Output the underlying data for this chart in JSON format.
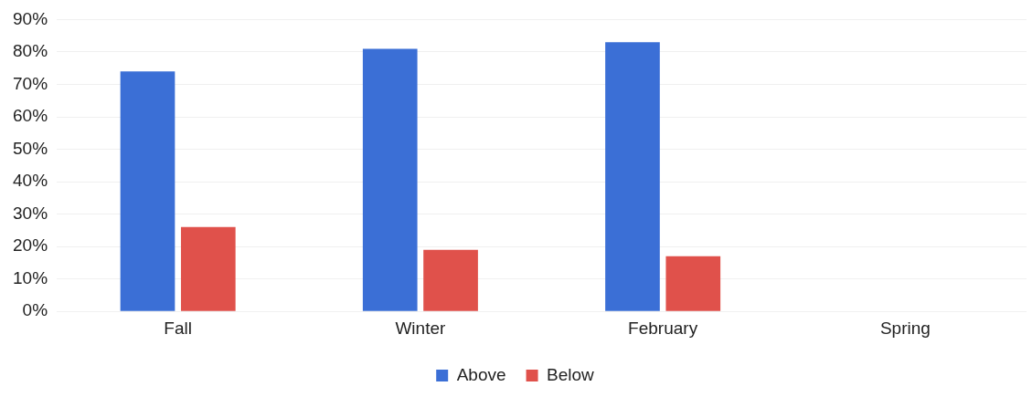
{
  "chart_data": {
    "type": "bar",
    "categories": [
      "Fall",
      "Winter",
      "February",
      "Spring"
    ],
    "series": [
      {
        "name": "Above",
        "color": "#3b6fd6",
        "values": [
          74,
          81,
          83,
          null
        ]
      },
      {
        "name": "Below",
        "color": "#e0514b",
        "values": [
          26,
          19,
          17,
          null
        ]
      }
    ],
    "ylim": [
      0,
      90
    ],
    "yticks": [
      {
        "value": 0,
        "label": "0%"
      },
      {
        "value": 10,
        "label": "10%"
      },
      {
        "value": 20,
        "label": "20%"
      },
      {
        "value": 30,
        "label": "30%"
      },
      {
        "value": 40,
        "label": "40%"
      },
      {
        "value": 50,
        "label": "50%"
      },
      {
        "value": 60,
        "label": "60%"
      },
      {
        "value": 70,
        "label": "70%"
      },
      {
        "value": 80,
        "label": "80%"
      },
      {
        "value": 90,
        "label": "90%"
      }
    ],
    "grid": "y",
    "legend": "bottom"
  }
}
